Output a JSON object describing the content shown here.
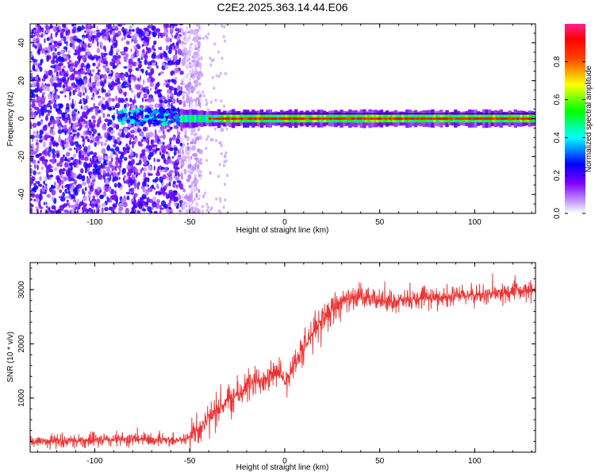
{
  "title": "C2E2.2025.363.14.44.E06",
  "chart_data": [
    {
      "type": "heatmap",
      "xlabel": "Height of straight line (km)",
      "ylabel": "Frequency (Hz)",
      "xlim": [
        -134,
        132
      ],
      "ylim": [
        -50,
        50
      ],
      "xticks": [
        -100,
        -50,
        0,
        50,
        100
      ],
      "xtick_labels": [
        "-100",
        "-50",
        "0",
        "50",
        "100"
      ],
      "yticks": [
        -40,
        -20,
        0,
        20,
        40
      ],
      "ytick_labels": [
        "-40",
        "-20",
        "0",
        "20",
        "40"
      ],
      "colorbar": {
        "label": "Normalized spectral amplitude",
        "range": [
          0,
          1
        ],
        "ticks": [
          0,
          0.2,
          0.4,
          0.6,
          0.8
        ],
        "tick_labels": [
          "0.0",
          "0.2",
          "0.4",
          "0.6",
          "0.8"
        ],
        "colors": [
          "#ffffff",
          "#a000ff",
          "#0000ff",
          "#00ffff",
          "#00ff00",
          "#ffff00",
          "#ff0000",
          "#ff00a0"
        ]
      },
      "features": {
        "noise_region_x": [
          -134,
          -50
        ],
        "signal_band_x": [
          -55,
          132
        ],
        "signal_center_hz": 0,
        "signal_halfwidth_hz": 2
      }
    },
    {
      "type": "line",
      "xlabel": "Height of straight line (km)",
      "ylabel": "SNR (10 * v/v)",
      "xlim": [
        -134,
        132
      ],
      "ylim": [
        0,
        3500
      ],
      "xticks": [
        -100,
        -50,
        0,
        50,
        100
      ],
      "xtick_labels": [
        "-100",
        "-50",
        "0",
        "50",
        "100"
      ],
      "yticks": [
        1000,
        2000,
        3000
      ],
      "ytick_labels": [
        "1000",
        "2000",
        "3000"
      ],
      "line_color": "#ee3333",
      "series": [
        {
          "name": "SNR",
          "x": [
            -134,
            -100,
            -80,
            -60,
            -52,
            -50,
            -45,
            -40,
            -35,
            -30,
            -25,
            -20,
            -15,
            -10,
            -5,
            0,
            5,
            10,
            15,
            20,
            25,
            30,
            40,
            50,
            60,
            70,
            80,
            90,
            100,
            110,
            120,
            132
          ],
          "y": [
            200,
            220,
            240,
            230,
            230,
            300,
            450,
            600,
            800,
            950,
            1050,
            1200,
            1300,
            1400,
            1500,
            1300,
            1650,
            1900,
            2200,
            2500,
            2650,
            2800,
            2850,
            2800,
            2780,
            2820,
            2850,
            2880,
            2900,
            2920,
            2950,
            2980
          ]
        }
      ]
    }
  ]
}
